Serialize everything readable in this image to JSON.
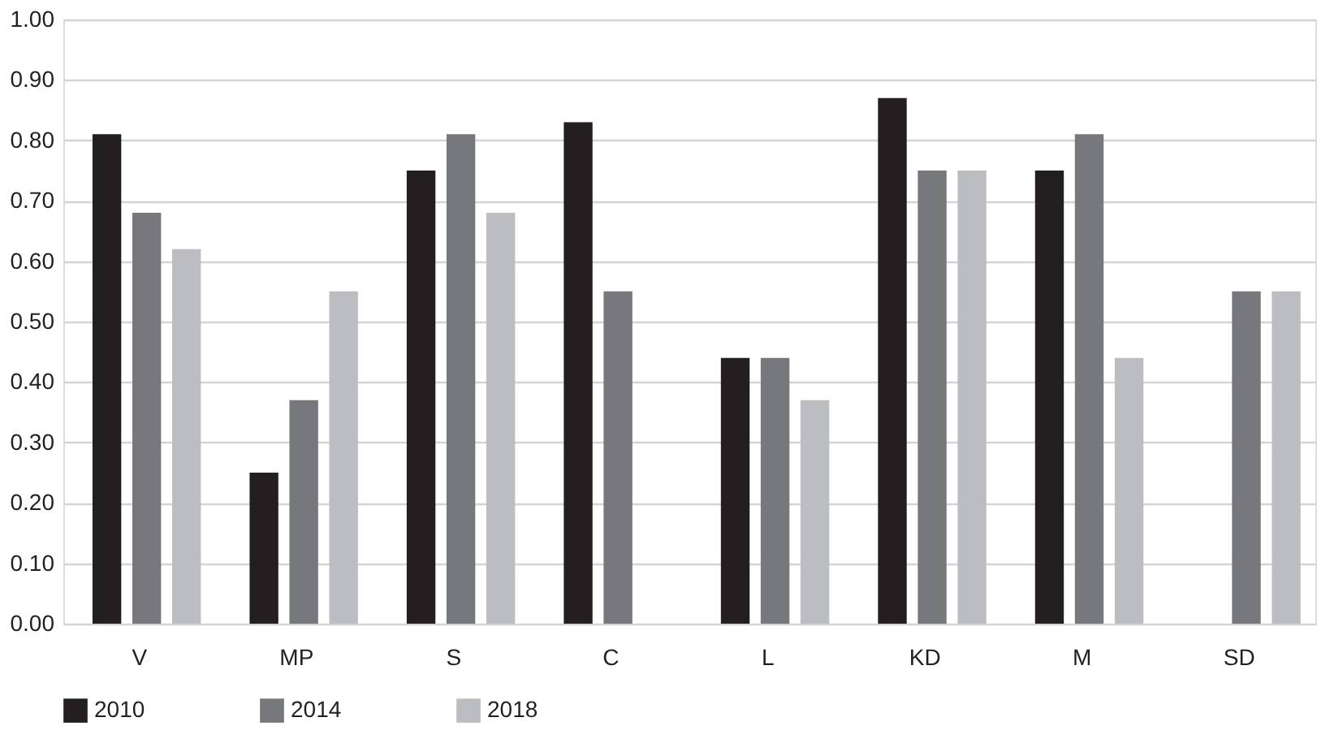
{
  "chart_data": {
    "type": "bar",
    "categories": [
      "V",
      "MP",
      "S",
      "C",
      "L",
      "KD",
      "M",
      "SD"
    ],
    "series": [
      {
        "name": "2010",
        "color": "#231f20",
        "values": [
          0.81,
          0.25,
          0.75,
          0.83,
          0.44,
          0.87,
          0.75,
          null
        ]
      },
      {
        "name": "2014",
        "color": "#77787b",
        "values": [
          0.68,
          0.37,
          0.81,
          0.55,
          0.44,
          0.75,
          0.81,
          0.55
        ]
      },
      {
        "name": "2018",
        "color": "#bcbdc0",
        "values": [
          0.62,
          0.55,
          0.68,
          null,
          0.37,
          0.75,
          0.44,
          0.55
        ]
      }
    ],
    "ylim": [
      0,
      1
    ],
    "yticks": [
      {
        "value": 0,
        "label": "0.00"
      },
      {
        "value": 0.1,
        "label": "0.10"
      },
      {
        "value": 0.2,
        "label": "0.20"
      },
      {
        "value": 0.3,
        "label": "0.30"
      },
      {
        "value": 0.4,
        "label": "0.40"
      },
      {
        "value": 0.5,
        "label": "0.50"
      },
      {
        "value": 0.6,
        "label": "0.60"
      },
      {
        "value": 0.7,
        "label": "0.70"
      },
      {
        "value": 0.8,
        "label": "0.80"
      },
      {
        "value": 0.9,
        "label": "0.90"
      },
      {
        "value": 1,
        "label": "1.00"
      }
    ],
    "grid": "y",
    "legend": "bottom"
  }
}
